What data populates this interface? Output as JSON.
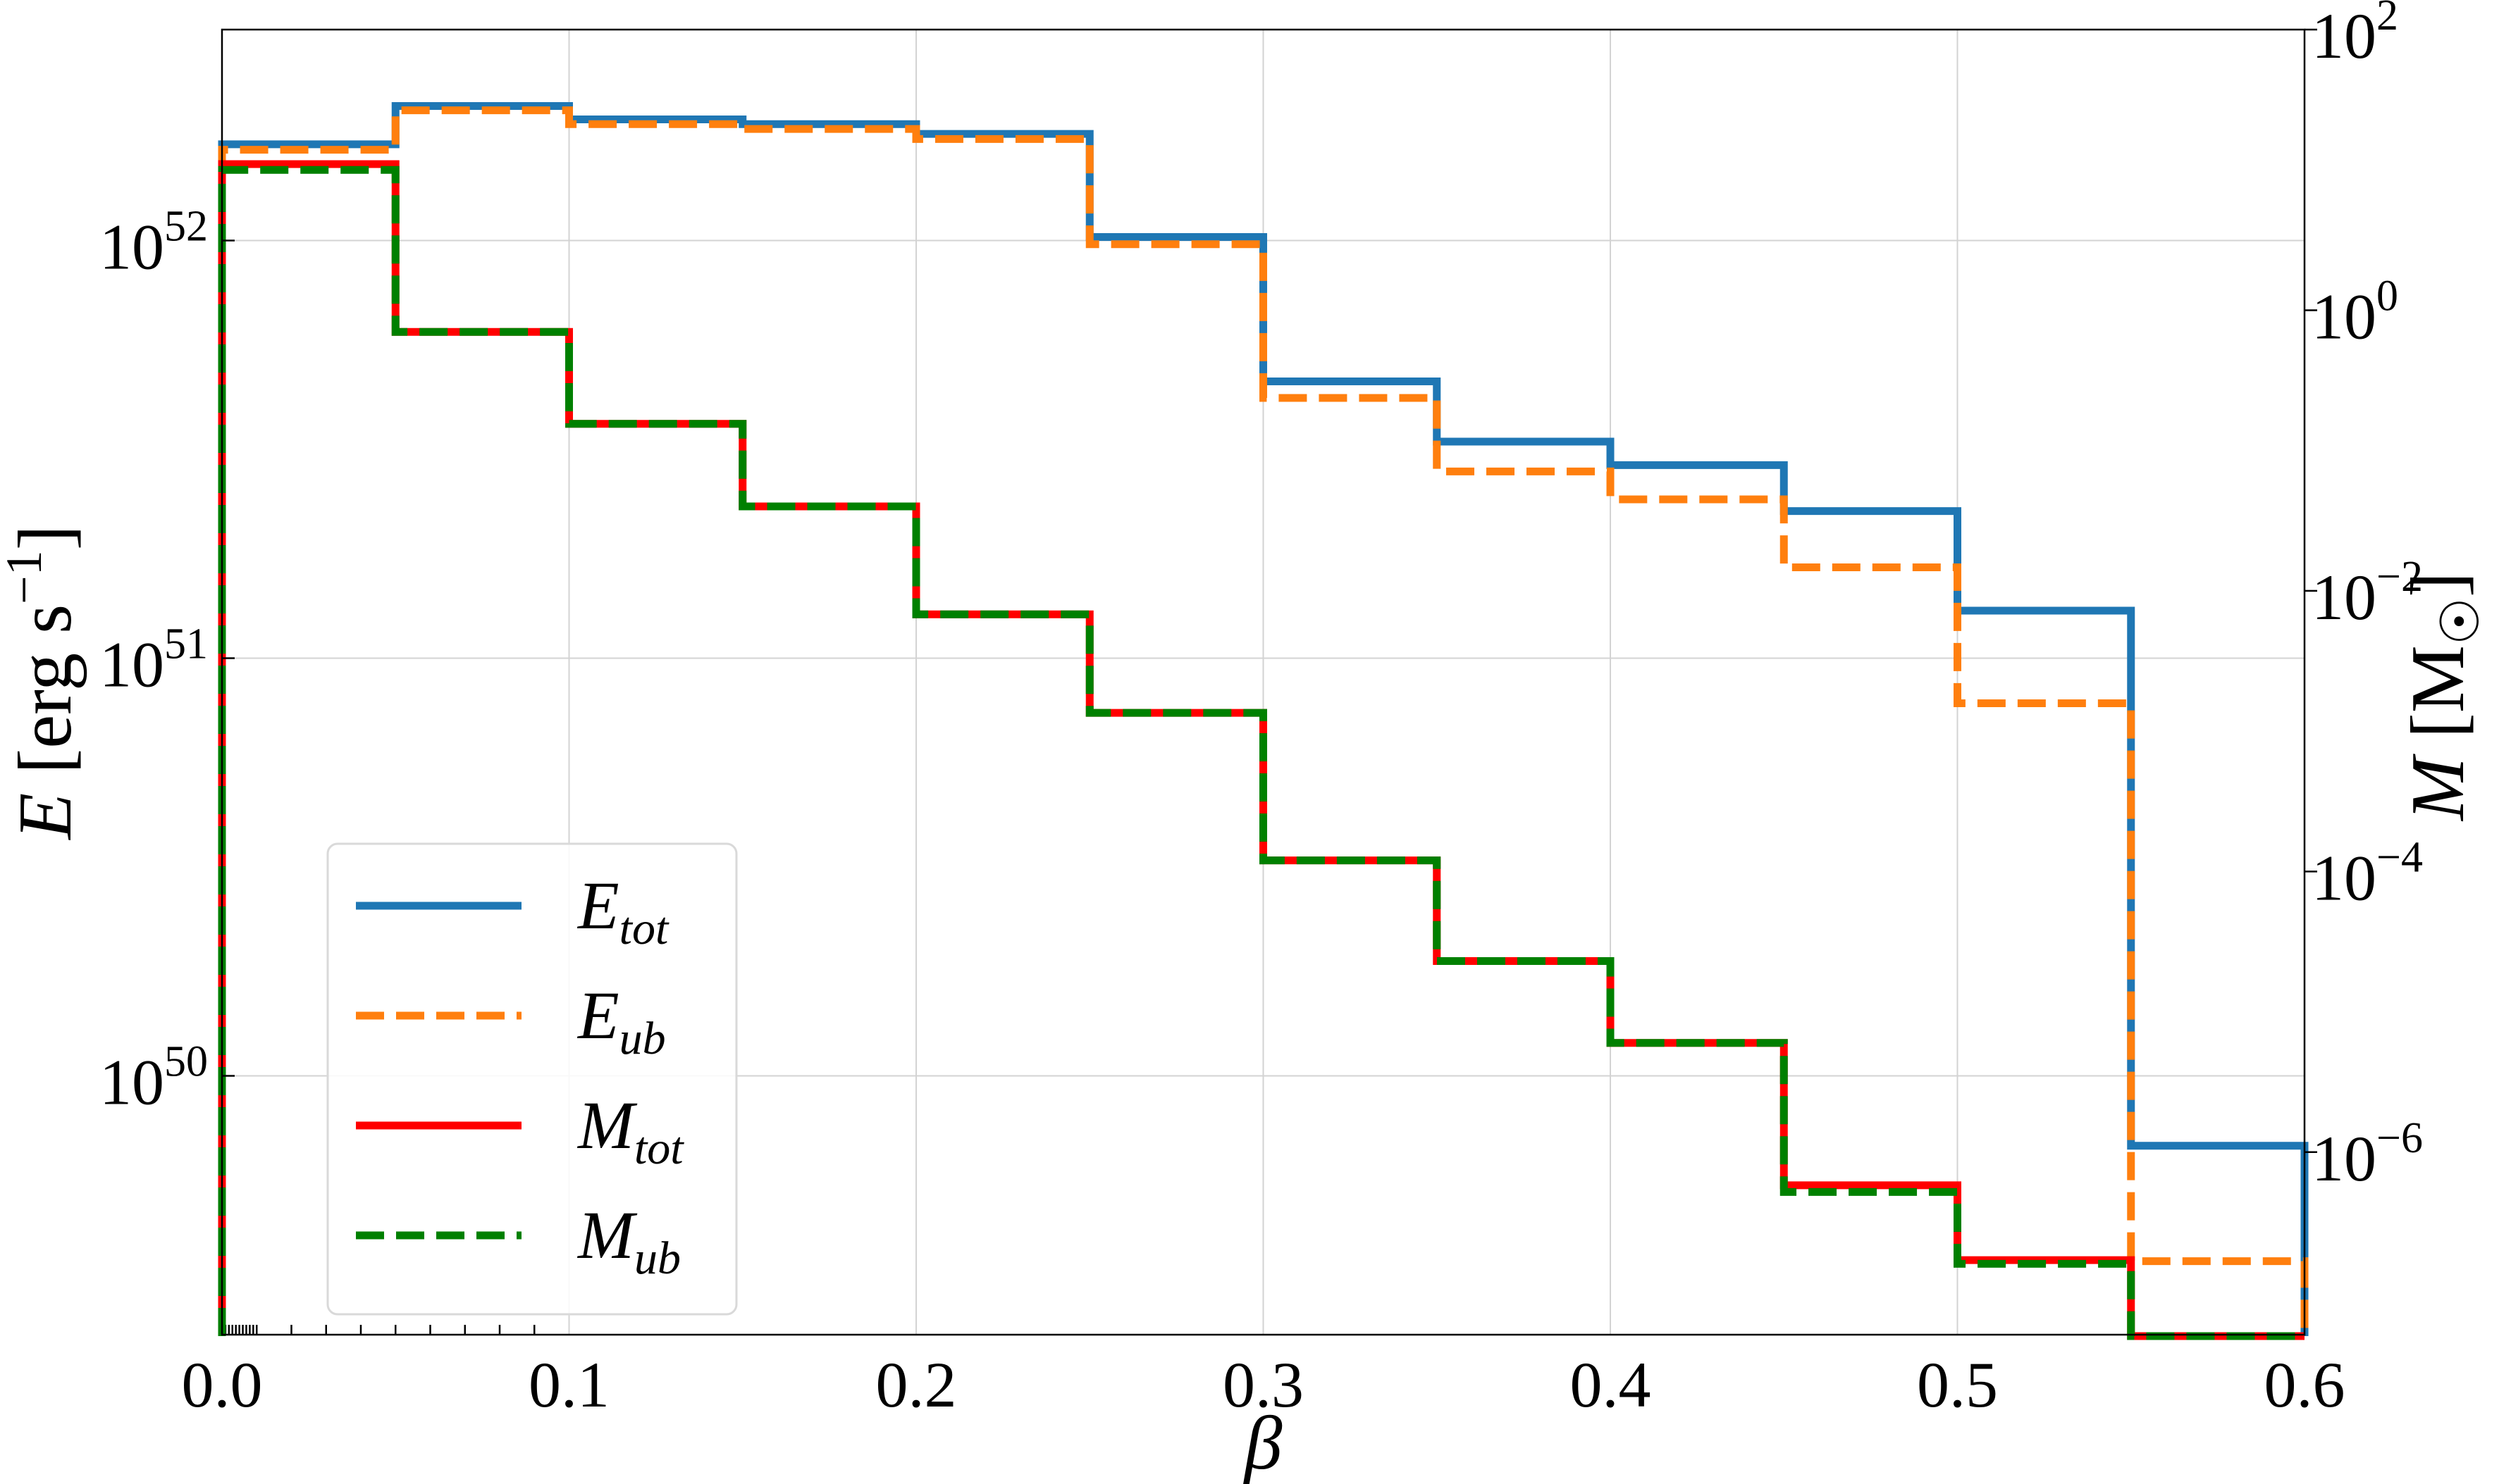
{
  "chart_data": {
    "type": "line",
    "style": "step",
    "xlabel": "β",
    "ylabel_left": "E [erg s⁻¹]",
    "ylabel_right": "M [M☉]",
    "xlim": [
      0.0,
      0.6
    ],
    "ylim_left": [
      2.4e+49,
      3.2e+52
    ],
    "ylim_right": [
      5e-08,
      100
    ],
    "yscale": "log",
    "xscale": "linear",
    "grid": true,
    "legend_position": "lower-left",
    "x_ticks": [
      "0.0",
      "0.1",
      "0.2",
      "0.3",
      "0.4",
      "0.5",
      "0.6"
    ],
    "y_left_ticks": [
      {
        "value": 1e+50,
        "base": "10",
        "exp": "50"
      },
      {
        "value": 1e+51,
        "base": "10",
        "exp": "51"
      },
      {
        "value": 1e+52,
        "base": "10",
        "exp": "52"
      }
    ],
    "y_right_ticks": [
      {
        "value": 1e-06,
        "base": "10",
        "exp": "−6"
      },
      {
        "value": 0.0001,
        "base": "10",
        "exp": "−4"
      },
      {
        "value": 0.01,
        "base": "10",
        "exp": "−2"
      },
      {
        "value": 1,
        "base": "10",
        "exp": "0"
      },
      {
        "value": 100,
        "base": "10",
        "exp": "2"
      }
    ],
    "bin_edges": [
      0.0,
      0.05,
      0.1,
      0.15,
      0.2,
      0.25,
      0.3,
      0.35,
      0.4,
      0.45,
      0.5,
      0.55,
      0.6
    ],
    "series": [
      {
        "name": "E_tot",
        "label_main": "E",
        "label_sub": "tot",
        "axis": "left",
        "color": "#1f77b4",
        "dash": "solid",
        "values": [
          1.7e+52,
          2.1e+52,
          1.95e+52,
          1.9e+52,
          1.8e+52,
          1.02e+52,
          4.6e+51,
          3.3e+51,
          2.9e+51,
          2.25e+51,
          1.3e+51,
          6.8e+49
        ]
      },
      {
        "name": "E_ub",
        "label_main": "E",
        "label_sub": "ub",
        "axis": "left",
        "color": "#ff7f0e",
        "dash": "dashed",
        "values": [
          1.65e+52,
          2.05e+52,
          1.9e+52,
          1.85e+52,
          1.75e+52,
          9.8e+51,
          4.2e+51,
          2.8e+51,
          2.4e+51,
          1.65e+51,
          7.8e+50,
          3.6e+49
        ]
      },
      {
        "name": "M_tot",
        "label_main": "M",
        "label_sub": "tot",
        "axis": "right",
        "color": "#ff0000",
        "dash": "solid",
        "values": [
          11,
          0.7,
          0.155,
          0.04,
          0.0068,
          0.00135,
          0.00012,
          2.3e-05,
          6e-06,
          5.8e-07,
          1.7e-07,
          2e-08
        ]
      },
      {
        "name": "M_ub",
        "label_main": "M",
        "label_sub": "ub",
        "axis": "right",
        "color": "#008000",
        "dash": "dashed",
        "values": [
          10,
          0.7,
          0.155,
          0.04,
          0.0068,
          0.00135,
          0.00012,
          2.3e-05,
          6e-06,
          5.2e-07,
          1.6e-07,
          2e-08
        ]
      }
    ]
  }
}
